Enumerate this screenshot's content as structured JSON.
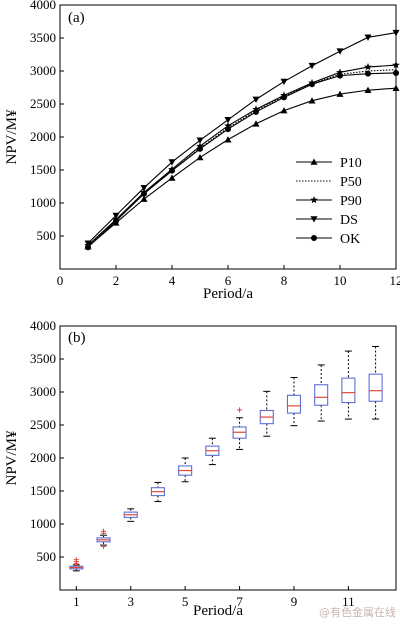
{
  "chart_data": [
    {
      "type": "line",
      "panel_label": "(a)",
      "xlabel": "Period/a",
      "ylabel": "NPV/M¥",
      "xlim": [
        0,
        12
      ],
      "ylim": [
        0,
        4000
      ],
      "xticks": [
        "0",
        "2",
        "4",
        "6",
        "8",
        "10",
        "12"
      ],
      "yticks": [
        "500",
        "1000",
        "1500",
        "2000",
        "2500",
        "3000",
        "3500",
        "4000"
      ],
      "legend_position": "bottom-right",
      "x": [
        1,
        2,
        3,
        4,
        5,
        6,
        7,
        8,
        9,
        10,
        11,
        12
      ],
      "series": [
        {
          "name": "P10",
          "marker": "triangle-up",
          "style": "solid",
          "values": [
            340,
            700,
            1060,
            1380,
            1690,
            1960,
            2200,
            2400,
            2550,
            2650,
            2710,
            2740
          ]
        },
        {
          "name": "P50",
          "marker": "none",
          "style": "dotted",
          "values": [
            350,
            740,
            1140,
            1490,
            1830,
            2140,
            2400,
            2620,
            2810,
            2950,
            3000,
            3020
          ]
        },
        {
          "name": "P90",
          "marker": "star",
          "style": "solid",
          "values": [
            360,
            750,
            1160,
            1510,
            1860,
            2170,
            2420,
            2630,
            2820,
            2980,
            3060,
            3090
          ]
        },
        {
          "name": "DS",
          "marker": "triangle-down",
          "style": "solid",
          "values": [
            390,
            810,
            1230,
            1620,
            1950,
            2260,
            2570,
            2840,
            3080,
            3300,
            3510,
            3580
          ]
        },
        {
          "name": "OK",
          "marker": "circle",
          "style": "solid",
          "values": [
            330,
            730,
            1140,
            1490,
            1820,
            2120,
            2380,
            2600,
            2800,
            2930,
            2960,
            2970
          ]
        }
      ]
    },
    {
      "type": "box",
      "panel_label": "(b)",
      "xlabel": "Period/a",
      "ylabel": "NPV/M¥",
      "ylim": [
        0,
        4000
      ],
      "xticks": [
        "1",
        "3",
        "5",
        "7",
        "9",
        "11"
      ],
      "yticks": [
        "500",
        "1000",
        "1500",
        "2000",
        "2500",
        "3000",
        "3500",
        "4000"
      ],
      "categories": [
        1,
        2,
        3,
        4,
        5,
        6,
        7,
        8,
        9,
        10,
        11,
        12
      ],
      "boxes": [
        {
          "period": 1,
          "min": 290,
          "q1": 320,
          "median": 340,
          "q3": 360,
          "max": 380,
          "outliers": [
            400,
            430,
            460
          ]
        },
        {
          "period": 2,
          "min": 680,
          "q1": 730,
          "median": 760,
          "q3": 790,
          "max": 830,
          "outliers": [
            860,
            890,
            660
          ]
        },
        {
          "period": 3,
          "min": 1040,
          "q1": 1100,
          "median": 1140,
          "q3": 1180,
          "max": 1230,
          "outliers": []
        },
        {
          "period": 4,
          "min": 1340,
          "q1": 1430,
          "median": 1490,
          "q3": 1550,
          "max": 1630,
          "outliers": []
        },
        {
          "period": 5,
          "min": 1640,
          "q1": 1740,
          "median": 1810,
          "q3": 1880,
          "max": 2000,
          "outliers": []
        },
        {
          "period": 6,
          "min": 1900,
          "q1": 2040,
          "median": 2110,
          "q3": 2180,
          "max": 2300,
          "outliers": []
        },
        {
          "period": 7,
          "min": 2130,
          "q1": 2300,
          "median": 2390,
          "q3": 2470,
          "max": 2610,
          "outliers": [
            2730
          ]
        },
        {
          "period": 8,
          "min": 2330,
          "q1": 2520,
          "median": 2620,
          "q3": 2720,
          "max": 3010,
          "outliers": []
        },
        {
          "period": 9,
          "min": 2490,
          "q1": 2680,
          "median": 2790,
          "q3": 2950,
          "max": 3220,
          "outliers": []
        },
        {
          "period": 10,
          "min": 2560,
          "q1": 2800,
          "median": 2920,
          "q3": 3110,
          "max": 3410,
          "outliers": []
        },
        {
          "period": 11,
          "min": 2590,
          "q1": 2840,
          "median": 2990,
          "q3": 3210,
          "max": 3620,
          "outliers": []
        },
        {
          "period": 12,
          "min": 2590,
          "q1": 2860,
          "median": 3020,
          "q3": 3270,
          "max": 3690,
          "outliers": []
        }
      ],
      "colors": {
        "box": "#5b6fd6",
        "median": "#e0483a",
        "outlier": "#e0483a",
        "whisker": "#000000"
      }
    }
  ],
  "watermark": "@有色金属在线"
}
